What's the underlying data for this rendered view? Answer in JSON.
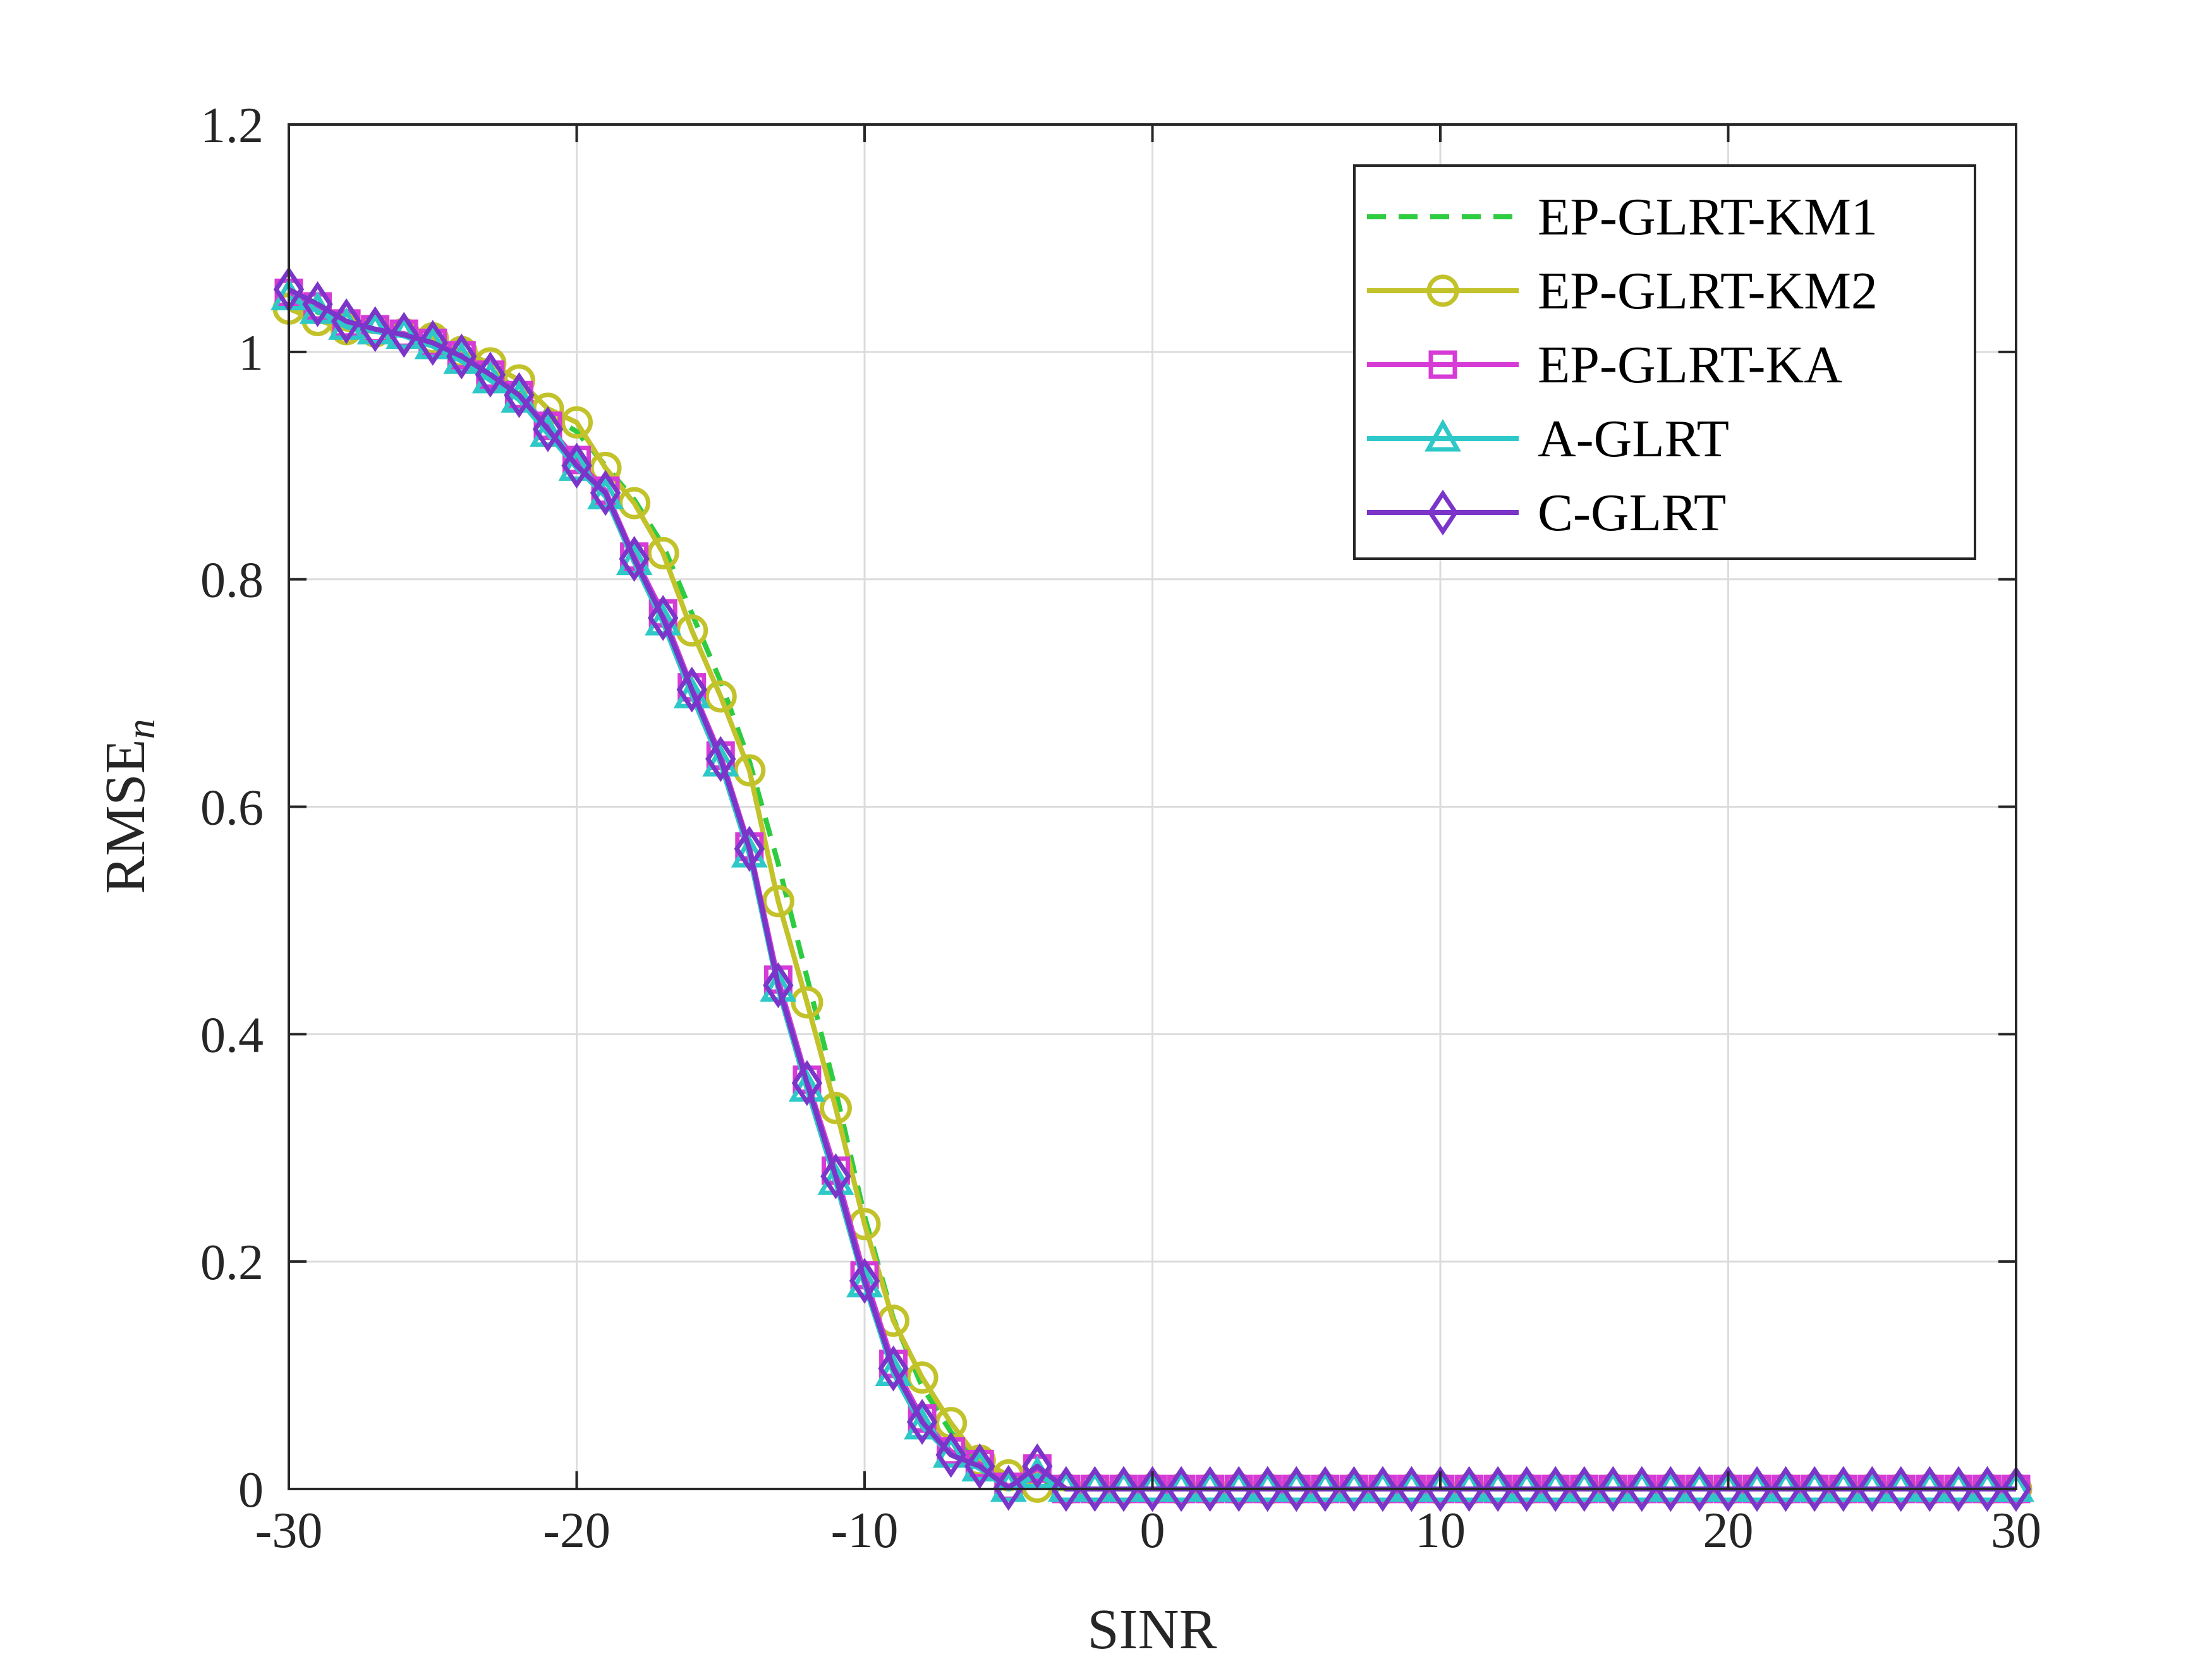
{
  "chart_data": {
    "type": "line",
    "title": "",
    "xlabel": "SINR",
    "ylabel": "RMSE",
    "ylabel_subscript": "n",
    "xlim": [
      -30,
      30
    ],
    "ylim": [
      0,
      1.2
    ],
    "xticks": [
      -30,
      -20,
      -10,
      0,
      10,
      20,
      30
    ],
    "xtick_labels": [
      "-30",
      "-20",
      "-10",
      "0",
      "10",
      "20",
      "30"
    ],
    "yticks": [
      0,
      0.2,
      0.4,
      0.6,
      0.8,
      1,
      1.2
    ],
    "ytick_labels": [
      "0",
      "0.2",
      "0.4",
      "0.6",
      "0.8",
      "1",
      "1.2"
    ],
    "grid": true,
    "legend_position": "top-right",
    "x": [
      -30,
      -29,
      -28,
      -27,
      -26,
      -25,
      -24,
      -23,
      -22,
      -21,
      -20,
      -19,
      -18,
      -17,
      -16,
      -15,
      -14,
      -13,
      -12,
      -11,
      -10,
      -9,
      -8,
      -7,
      -6,
      -5,
      -4,
      -3,
      -2,
      -1,
      0,
      1,
      2,
      3,
      4,
      5,
      6,
      7,
      8,
      9,
      10,
      11,
      12,
      13,
      14,
      15,
      16,
      17,
      18,
      19,
      20,
      21,
      22,
      23,
      24,
      25,
      26,
      27,
      28,
      29,
      30
    ],
    "series": [
      {
        "name": "EP-GLRT-KM1",
        "color": "#2ecc40",
        "marker": "none",
        "line_style": "dashed",
        "values": [
          1.05,
          1.035,
          1.025,
          1.02,
          1.015,
          1.01,
          0.995,
          0.985,
          0.965,
          0.945,
          0.93,
          0.9,
          0.87,
          0.83,
          0.77,
          0.71,
          0.64,
          0.55,
          0.45,
          0.35,
          0.24,
          0.15,
          0.09,
          0.05,
          0.02,
          0.005,
          0.005,
          0,
          0,
          0,
          0,
          0,
          0,
          0,
          0,
          0,
          0,
          0,
          0,
          0,
          0,
          0,
          0,
          0,
          0,
          0,
          0,
          0,
          0,
          0,
          0,
          0,
          0,
          0,
          0,
          0,
          0,
          0,
          0,
          0,
          0
        ]
      },
      {
        "name": "EP-GLRT-KM2",
        "color": "#c2c22a",
        "marker": "circle",
        "line_style": "solid",
        "values": [
          1.038,
          1.028,
          1.02,
          1.018,
          1.016,
          1.012,
          1.0,
          0.99,
          0.975,
          0.95,
          0.938,
          0.898,
          0.867,
          0.823,
          0.755,
          0.697,
          0.632,
          0.517,
          0.428,
          0.335,
          0.233,
          0.148,
          0.098,
          0.058,
          0.025,
          0.012,
          0.002,
          0,
          0,
          0,
          0,
          0,
          0,
          0,
          0,
          0,
          0,
          0,
          0,
          0,
          0,
          0,
          0,
          0,
          0,
          0,
          0,
          0,
          0,
          0,
          0,
          0,
          0,
          0,
          0,
          0,
          0,
          0,
          0,
          0,
          0
        ]
      },
      {
        "name": "EP-GLRT-KA",
        "color": "#d63bd6",
        "marker": "square",
        "line_style": "solid",
        "values": [
          1.052,
          1.04,
          1.025,
          1.02,
          1.016,
          1.008,
          0.997,
          0.98,
          0.962,
          0.935,
          0.905,
          0.878,
          0.82,
          0.77,
          0.705,
          0.645,
          0.565,
          0.448,
          0.36,
          0.28,
          0.188,
          0.11,
          0.062,
          0.033,
          0.022,
          0.002,
          0.018,
          0,
          0,
          0,
          0,
          0,
          0,
          0,
          0,
          0,
          0,
          0,
          0,
          0,
          0,
          0,
          0,
          0,
          0,
          0,
          0,
          0,
          0,
          0,
          0,
          0,
          0,
          0,
          0,
          0,
          0,
          0,
          0,
          0,
          0
        ]
      },
      {
        "name": "A-GLRT",
        "color": "#2ec8c8",
        "marker": "triangle",
        "line_style": "solid",
        "values": [
          1.048,
          1.036,
          1.022,
          1.018,
          1.014,
          1.005,
          0.992,
          0.975,
          0.958,
          0.928,
          0.898,
          0.873,
          0.815,
          0.762,
          0.698,
          0.638,
          0.558,
          0.44,
          0.352,
          0.27,
          0.18,
          0.102,
          0.055,
          0.03,
          0.018,
          0,
          0.012,
          0,
          0,
          0,
          0,
          0,
          0,
          0,
          0,
          0,
          0,
          0,
          0,
          0,
          0,
          0,
          0,
          0,
          0,
          0,
          0,
          0,
          0,
          0,
          0,
          0,
          0,
          0,
          0,
          0,
          0,
          0,
          0,
          0,
          0
        ]
      },
      {
        "name": "C-GLRT",
        "color": "#7b35c9",
        "marker": "diamond",
        "line_style": "solid",
        "values": [
          1.055,
          1.042,
          1.027,
          1.02,
          1.015,
          1.008,
          0.996,
          0.98,
          0.962,
          0.932,
          0.9,
          0.876,
          0.818,
          0.766,
          0.703,
          0.642,
          0.563,
          0.443,
          0.357,
          0.275,
          0.183,
          0.106,
          0.059,
          0.03,
          0.02,
          0.001,
          0.02,
          0,
          0,
          0,
          0,
          0,
          0,
          0,
          0,
          0,
          0,
          0,
          0,
          0,
          0,
          0,
          0,
          0,
          0,
          0,
          0,
          0,
          0,
          0,
          0,
          0,
          0,
          0,
          0,
          0,
          0,
          0,
          0,
          0,
          0
        ]
      }
    ]
  }
}
